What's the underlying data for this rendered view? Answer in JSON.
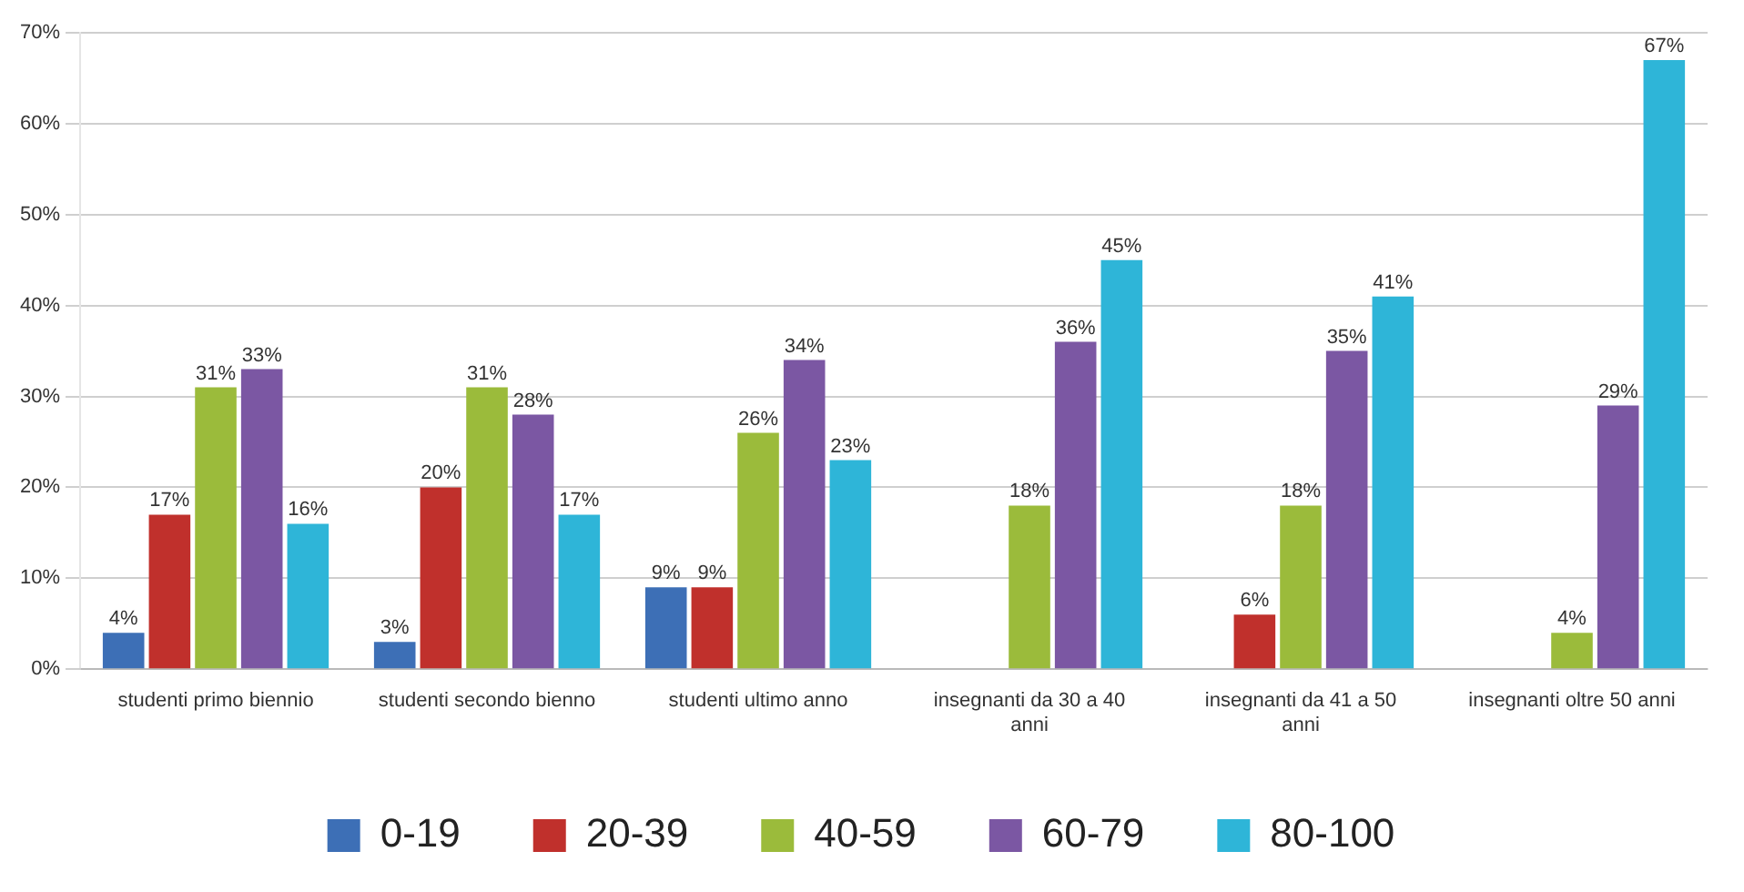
{
  "chart_data": {
    "type": "bar",
    "categories": [
      "studenti primo biennio",
      "studenti secondo bienno",
      "studenti ultimo anno",
      "insegnanti da 30 a 40 anni",
      "insegnanti da 41 a 50 anni",
      "insegnanti oltre 50 anni"
    ],
    "series": [
      {
        "name": "0-19",
        "color": "#3d6fb6",
        "values": [
          4,
          3,
          9,
          null,
          null,
          null
        ],
        "value_labels": [
          "4%",
          "3%",
          "9%",
          null,
          null,
          null
        ]
      },
      {
        "name": "20-39",
        "color": "#c0302c",
        "values": [
          17,
          20,
          9,
          null,
          6,
          null
        ],
        "value_labels": [
          "17%",
          "20%",
          "9%",
          null,
          "6%",
          null
        ]
      },
      {
        "name": "40-59",
        "color": "#9bbb3b",
        "values": [
          31,
          31,
          26,
          18,
          18,
          4
        ],
        "value_labels": [
          "31%",
          "31%",
          "26%",
          "18%",
          "18%",
          "4%"
        ]
      },
      {
        "name": "60-79",
        "color": "#7b57a3",
        "values": [
          33,
          28,
          34,
          36,
          35,
          29
        ],
        "value_labels": [
          "33%",
          "28%",
          "34%",
          "36%",
          "35%",
          "29%"
        ]
      },
      {
        "name": "80-100",
        "color": "#2eb5d8",
        "values": [
          16,
          17,
          23,
          45,
          41,
          67
        ],
        "value_labels": [
          "16%",
          "17%",
          "23%",
          "45%",
          "41%",
          "67%"
        ]
      }
    ],
    "ylim": [
      0,
      70
    ],
    "yticks": [
      {
        "value": 0,
        "label": "0%"
      },
      {
        "value": 10,
        "label": "10%"
      },
      {
        "value": 20,
        "label": "20%"
      },
      {
        "value": 30,
        "label": "30%"
      },
      {
        "value": 40,
        "label": "40%"
      },
      {
        "value": 50,
        "label": "50%"
      },
      {
        "value": 60,
        "label": "60%"
      },
      {
        "value": 70,
        "label": "70%"
      }
    ],
    "grid": "y",
    "legend": "bottom"
  }
}
